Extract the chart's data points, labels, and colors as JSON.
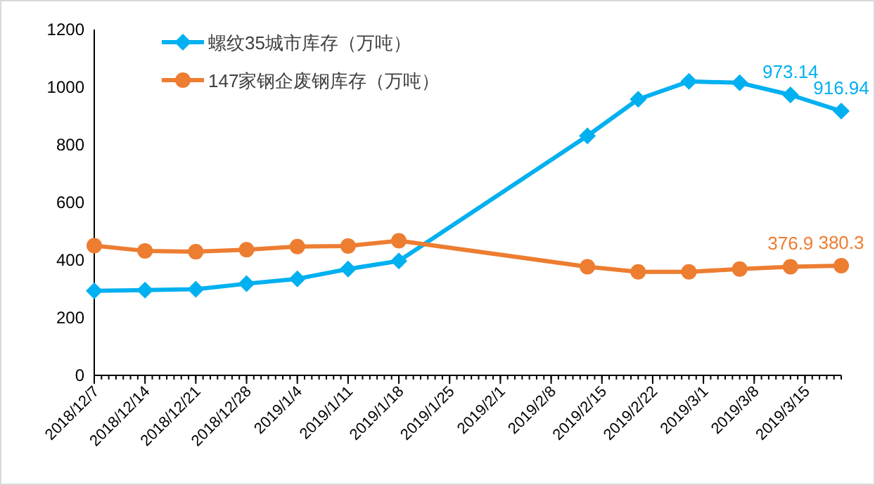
{
  "chart_data": {
    "type": "line",
    "x": [
      "2018-12-07",
      "2018-12-14",
      "2018-12-21",
      "2018-12-28",
      "2019-01-04",
      "2019-01-11",
      "2019-01-18",
      "2019-02-13",
      "2019-02-20",
      "2019-02-27",
      "2019-03-06",
      "2019-03-13",
      "2019-03-20"
    ],
    "series": [
      {
        "name": "螺纹35城市库存（万吨）",
        "color": "#00b0f0",
        "marker": "diamond",
        "values": [
          293,
          296,
          299,
          318,
          335,
          369,
          397,
          831,
          958,
          1020,
          1015,
          973.14,
          916.94
        ],
        "value_labels": [
          null,
          null,
          null,
          null,
          null,
          null,
          null,
          null,
          null,
          null,
          null,
          "973.14",
          "916.94"
        ]
      },
      {
        "name": "147家钢企废钢库存（万吨）",
        "color": "#ed7d31",
        "marker": "circle",
        "values": [
          450,
          432,
          429,
          436,
          447,
          449,
          467,
          377,
          359,
          359,
          369,
          376.9,
          380.3
        ],
        "value_labels": [
          null,
          null,
          null,
          null,
          null,
          null,
          null,
          null,
          null,
          null,
          null,
          "376.9",
          "380.3"
        ]
      }
    ],
    "xlim": [
      "2018-12-07",
      "2019-03-20"
    ],
    "xticks": [
      {
        "value": "2018-12-07",
        "label": "2018/12/7"
      },
      {
        "value": "2018-12-14",
        "label": "2018/12/14"
      },
      {
        "value": "2018-12-21",
        "label": "2018/12/21"
      },
      {
        "value": "2018-12-28",
        "label": "2018/12/28"
      },
      {
        "value": "2019-01-04",
        "label": "2019/1/4"
      },
      {
        "value": "2019-01-11",
        "label": "2019/1/11"
      },
      {
        "value": "2019-01-18",
        "label": "2019/1/18"
      },
      {
        "value": "2019-01-25",
        "label": "2019/1/25"
      },
      {
        "value": "2019-02-01",
        "label": "2019/2/1"
      },
      {
        "value": "2019-02-08",
        "label": "2019/2/8"
      },
      {
        "value": "2019-02-15",
        "label": "2019/2/15"
      },
      {
        "value": "2019-02-22",
        "label": "2019/2/22"
      },
      {
        "value": "2019-03-01",
        "label": "2019/3/1"
      },
      {
        "value": "2019-03-08",
        "label": "2019/3/8"
      },
      {
        "value": "2019-03-15",
        "label": "2019/3/15"
      }
    ],
    "ylim": [
      0,
      1200
    ],
    "yticks": [
      0,
      200,
      400,
      600,
      800,
      1000,
      1200
    ],
    "legend": "top left"
  }
}
